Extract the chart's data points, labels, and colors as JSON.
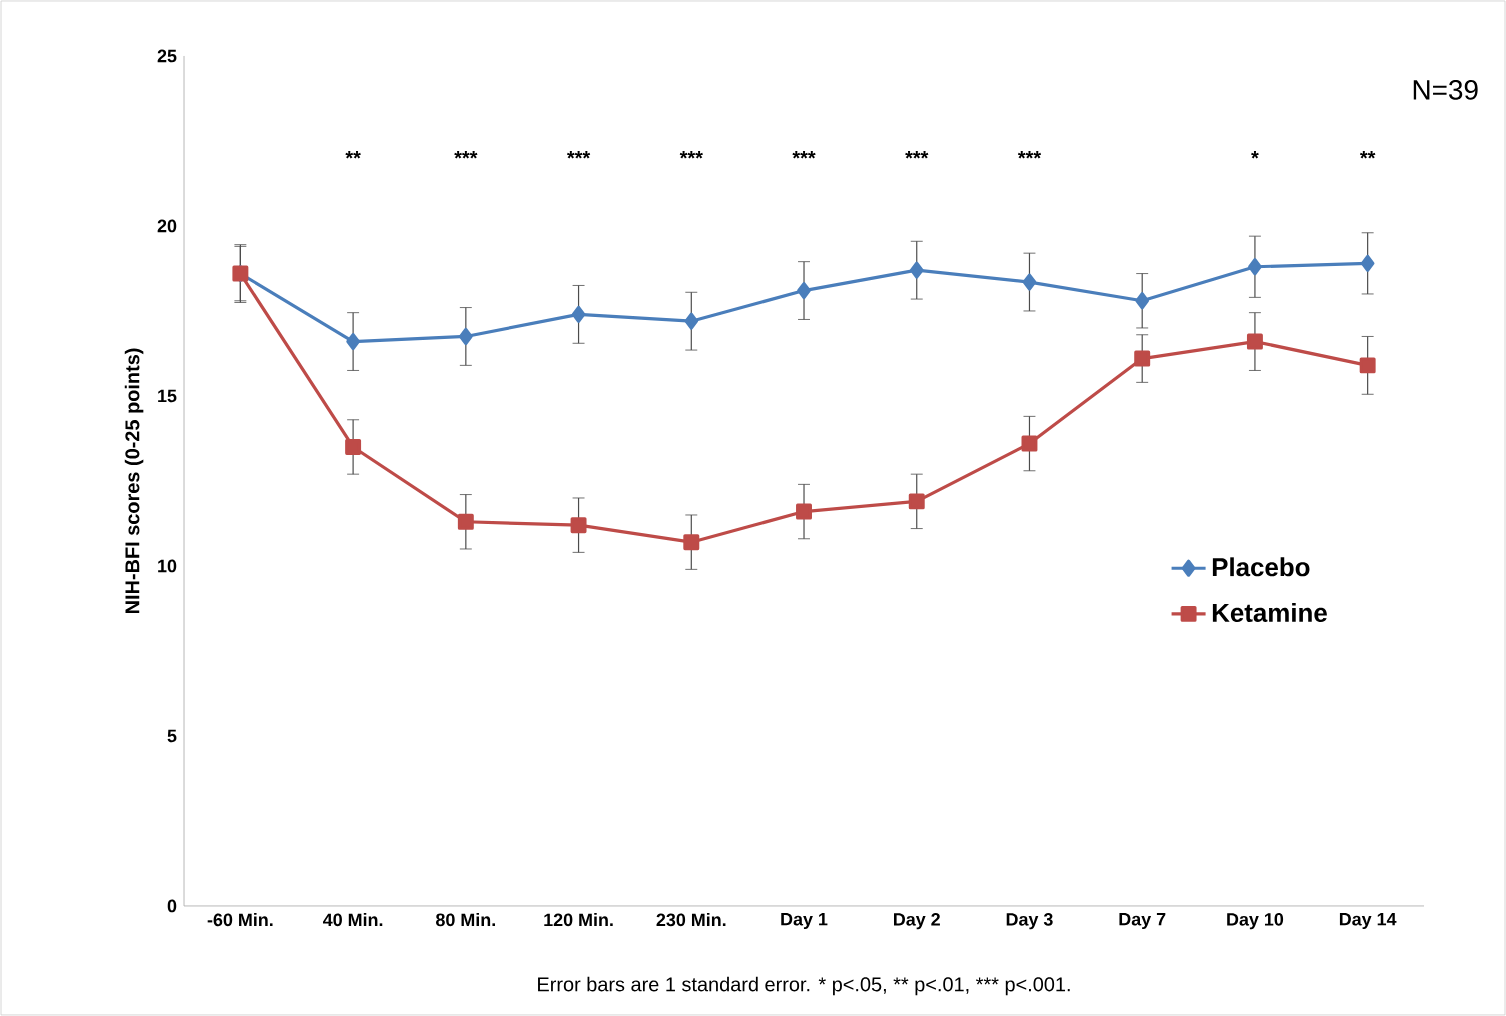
{
  "chart_data": {
    "type": "line",
    "ylabel": "NIH-BFI scores (0-25 points)",
    "categories": [
      "-60 Min.",
      "40 Min.",
      "80 Min.",
      "120 Min.",
      "230 Min.",
      "Day 1",
      "Day 2",
      "Day 3",
      "Day 7",
      "Day 10",
      "Day 14"
    ],
    "series": [
      {
        "name": "Placebo",
        "color": "#4a7ebb",
        "marker": "diamond",
        "values": [
          18.6,
          16.6,
          16.75,
          17.4,
          17.2,
          18.1,
          18.7,
          18.35,
          17.8,
          18.8,
          18.9
        ],
        "errors": [
          0.85,
          0.85,
          0.85,
          0.85,
          0.85,
          0.85,
          0.85,
          0.85,
          0.8,
          0.9,
          0.9
        ]
      },
      {
        "name": "Ketamine",
        "color": "#be4b48",
        "marker": "square",
        "values": [
          18.6,
          13.5,
          11.3,
          11.2,
          10.7,
          11.6,
          11.9,
          13.6,
          16.1,
          16.6,
          15.9
        ],
        "errors": [
          0.8,
          0.8,
          0.8,
          0.8,
          0.8,
          0.8,
          0.8,
          0.8,
          0.7,
          0.85,
          0.85
        ]
      }
    ],
    "ylim": [
      0,
      25
    ],
    "yticks": [
      0,
      5,
      10,
      15,
      20,
      25
    ],
    "grid": false,
    "legend": "right",
    "annotations": [
      "N=39",
      "**",
      "***",
      "***",
      "***",
      "***",
      "***",
      "***",
      "*",
      "**",
      "Error bars are 1 standard error.  * p<.05, ** p<.01, *** p<.001."
    ]
  }
}
